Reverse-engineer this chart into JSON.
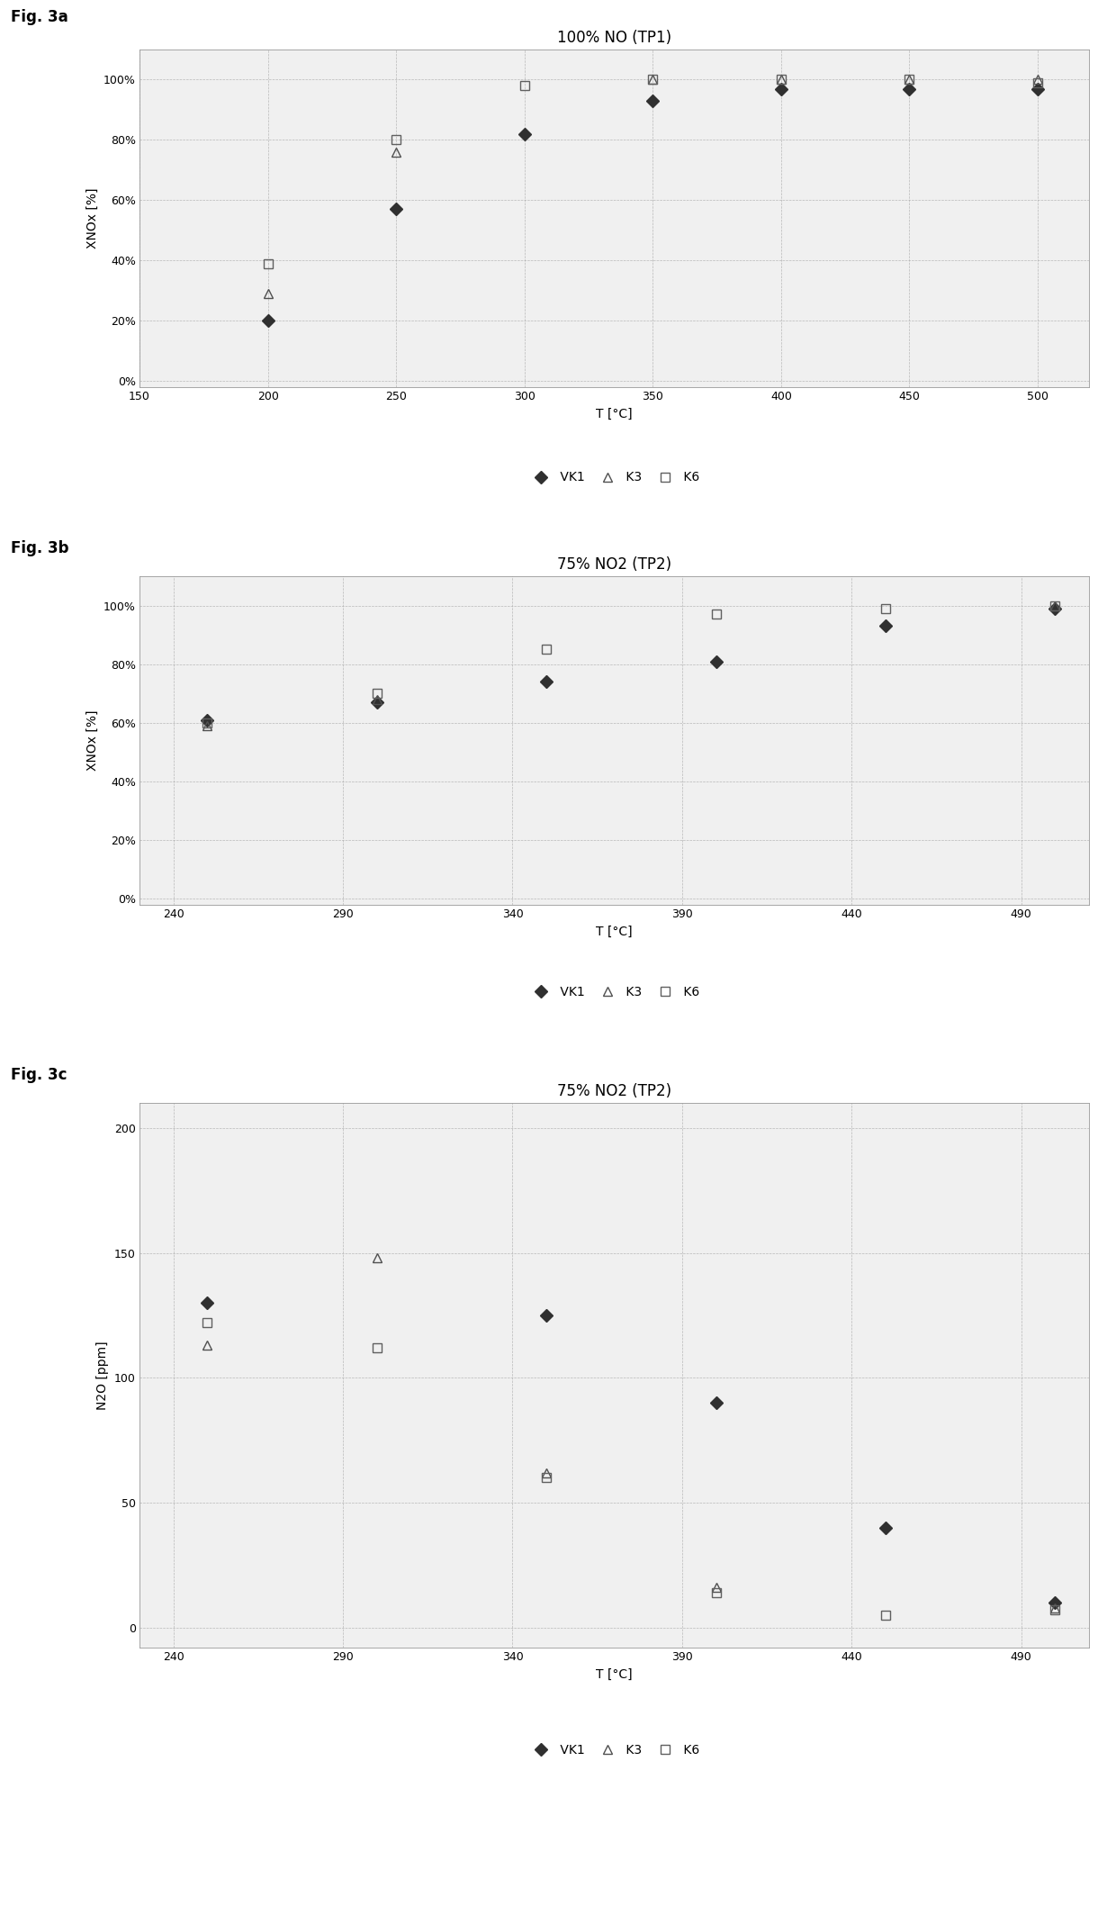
{
  "fig3a": {
    "title": "100% NO (TP1)",
    "xlabel": "T [°C]",
    "ylabel": "XNOx [%]",
    "xlim": [
      150,
      520
    ],
    "xticks": [
      150,
      200,
      250,
      300,
      350,
      400,
      450,
      500
    ],
    "ylim": [
      -0.02,
      1.1
    ],
    "yticks": [
      0.0,
      0.2,
      0.4,
      0.6,
      0.8,
      1.0
    ],
    "ytick_labels": [
      "0%",
      "20%",
      "40%",
      "60%",
      "80%",
      "100%"
    ],
    "VK1": {
      "x": [
        200,
        250,
        300,
        350,
        400,
        450,
        500
      ],
      "y": [
        0.2,
        0.57,
        0.82,
        0.93,
        0.97,
        0.97,
        0.97
      ]
    },
    "K3": {
      "x": [
        200,
        250,
        300,
        350,
        400,
        450,
        500
      ],
      "y": [
        0.29,
        0.76,
        null,
        1.0,
        1.0,
        1.0,
        1.0
      ]
    },
    "K6": {
      "x": [
        200,
        250,
        300,
        350,
        400,
        450,
        500
      ],
      "y": [
        0.39,
        0.8,
        0.98,
        1.0,
        1.0,
        1.0,
        0.99
      ]
    }
  },
  "fig3b": {
    "title": "75% NO2 (TP2)",
    "xlabel": "T [°C]",
    "ylabel": "XNOx [%]",
    "xlim": [
      230,
      510
    ],
    "xticks": [
      240,
      290,
      340,
      390,
      440,
      490
    ],
    "ylim": [
      -0.02,
      1.1
    ],
    "yticks": [
      0.0,
      0.2,
      0.4,
      0.6,
      0.8,
      1.0
    ],
    "ytick_labels": [
      "0%",
      "20%",
      "40%",
      "60%",
      "80%",
      "100%"
    ],
    "VK1": {
      "x": [
        250,
        300,
        350,
        400,
        450,
        500
      ],
      "y": [
        0.61,
        0.67,
        0.74,
        0.81,
        0.93,
        0.99
      ]
    },
    "K3": {
      "x": [
        250,
        300,
        350,
        400,
        450,
        500
      ],
      "y": [
        0.59,
        0.68,
        null,
        null,
        null,
        1.0
      ]
    },
    "K6": {
      "x": [
        250,
        300,
        350,
        400,
        450,
        500
      ],
      "y": [
        0.6,
        0.7,
        0.85,
        0.97,
        0.99,
        1.0
      ]
    }
  },
  "fig3c": {
    "title": "75% NO2 (TP2)",
    "xlabel": "T [°C]",
    "ylabel": "N2O [ppm]",
    "xlim": [
      230,
      510
    ],
    "xticks": [
      240,
      290,
      340,
      390,
      440,
      490
    ],
    "ylim": [
      -8,
      210
    ],
    "yticks": [
      0,
      50,
      100,
      150,
      200
    ],
    "ytick_labels": [
      "0",
      "50",
      "100",
      "150",
      "200"
    ],
    "VK1": {
      "x": [
        250,
        300,
        350,
        400,
        450,
        500
      ],
      "y": [
        130,
        null,
        125,
        90,
        40,
        10
      ]
    },
    "K3": {
      "x": [
        250,
        300,
        350,
        400,
        450,
        500
      ],
      "y": [
        113,
        148,
        62,
        16,
        null,
        8
      ]
    },
    "K6": {
      "x": [
        250,
        300,
        350,
        400,
        450,
        500
      ],
      "y": [
        122,
        112,
        60,
        14,
        5,
        7
      ]
    }
  },
  "fig_labels": [
    "Fig. 3a",
    "Fig. 3b",
    "Fig. 3c"
  ],
  "background_color": "#f0f0f0",
  "grid_color": "#aaaaaa",
  "marker_size": 7,
  "font_size_title": 12,
  "font_size_label": 10,
  "font_size_tick": 9,
  "font_size_legend": 10,
  "font_size_fig_label": 12
}
